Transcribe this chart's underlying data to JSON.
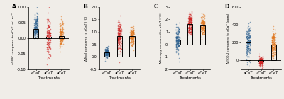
{
  "panels": [
    {
      "label": "A",
      "ylabel": "ΔSWC compared to aCaT (m³ m⁻³)",
      "xlabel": "Treatments",
      "ylim": [
        -0.1,
        0.1
      ],
      "yticks": [
        -0.1,
        -0.05,
        0.0,
        0.05,
        0.1
      ],
      "ytick_labels": [
        "-0.10",
        "-0.05",
        "0.00",
        "0.05",
        "0.10"
      ],
      "categories": [
        "eCaT",
        "aCaT",
        "eCeT"
      ],
      "bar_means": [
        0.03,
        0.005,
        0.007
      ],
      "bar_colors": [
        "#2B5F8E",
        "#CC2222",
        "#E07820"
      ],
      "violin_means": [
        0.03,
        0.002,
        0.007
      ],
      "violin_spreads": [
        0.018,
        0.03,
        0.022
      ],
      "violin_skew": [
        0.3,
        -0.2,
        0.1
      ],
      "hline": 0.0
    },
    {
      "label": "B",
      "ylabel": "ΔTsoil compared to aCaT (°C)",
      "xlabel": "Treatments",
      "ylim": [
        -0.5,
        2.0
      ],
      "yticks": [
        -0.5,
        0.0,
        0.5,
        1.0,
        1.5,
        2.0
      ],
      "ytick_labels": [
        "-0.5",
        "0.0",
        "0.5",
        "1.0",
        "1.5",
        "2.0"
      ],
      "categories": [
        "eCaT",
        "aCaT",
        "eCeT"
      ],
      "bar_means": [
        0.18,
        0.82,
        0.82
      ],
      "bar_colors": [
        "#2B5F8E",
        "#CC2222",
        "#E07820"
      ],
      "violin_means": [
        0.18,
        0.9,
        0.85
      ],
      "violin_spreads": [
        0.1,
        0.28,
        0.18
      ],
      "violin_skew": [
        0.0,
        0.0,
        0.0
      ],
      "hline": 0.0
    },
    {
      "label": "C",
      "ylabel": "ΔTcanopy compared to aCaT (°C)",
      "xlabel": "Treatments",
      "ylim": [
        -2.0,
        3.0
      ],
      "yticks": [
        -2,
        -1,
        0,
        1,
        2,
        3
      ],
      "ytick_labels": [
        "-2",
        "-1",
        "0",
        "1",
        "2",
        "3"
      ],
      "categories": [
        "eCaT",
        "aCaT",
        "eCeT"
      ],
      "bar_means": [
        0.4,
        1.65,
        1.5
      ],
      "bar_colors": [
        "#2B5F8E",
        "#CC2222",
        "#E07820"
      ],
      "violin_means": [
        0.4,
        1.65,
        1.5
      ],
      "violin_spreads": [
        0.55,
        0.45,
        0.4
      ],
      "violin_skew": [
        0.0,
        0.0,
        0.0
      ],
      "hline": 0.0
    },
    {
      "label": "D",
      "ylabel": "Δ [CO₂] compared to aCaT (ppm)",
      "xlabel": "Treatments",
      "ylim": [
        -100,
        600
      ],
      "yticks": [
        0,
        200,
        400,
        600
      ],
      "ytick_labels": [
        "0",
        "200",
        "400",
        "600"
      ],
      "categories": [
        "eCaT",
        "aCaT",
        "eCeT"
      ],
      "bar_means": [
        200,
        -10,
        175
      ],
      "bar_colors": [
        "#2B5F8E",
        "#CC2222",
        "#E07820"
      ],
      "violin_means": [
        200,
        -10,
        175
      ],
      "violin_spreads": [
        90,
        25,
        80
      ],
      "violin_skew": [
        0.0,
        0.0,
        0.0
      ],
      "hline": 0.0
    }
  ],
  "bg_color": "#f0ede8",
  "dot_alpha": 0.55,
  "dot_size": 1.2,
  "n_points": 200
}
